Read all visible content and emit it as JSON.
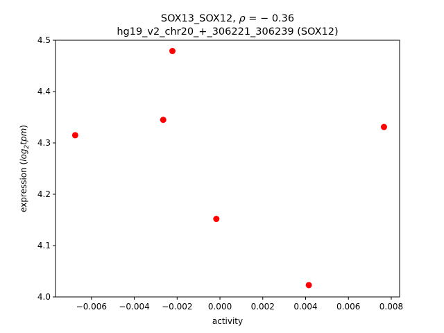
{
  "chart_data": {
    "type": "scatter",
    "title_line1": "SOX13_SOX12, ",
    "title_rho_symbol": "ρ",
    "title_rho_value": " = − 0.36",
    "title_line2": "hg19_v2_chr20_+_306221_306239 (SOX12)",
    "xlabel": "activity",
    "ylabel_prefix": "expression (",
    "ylabel_log": "log",
    "ylabel_sub": "2",
    "ylabel_tpm": "tpm",
    "ylabel_suffix": ")",
    "xlim": [
      -0.00768,
      0.00839
    ],
    "ylim": [
      4.0,
      4.5
    ],
    "xticks": [
      -0.006,
      -0.004,
      -0.002,
      0.0,
      0.002,
      0.004,
      0.006,
      0.008
    ],
    "xtick_labels": [
      "−0.006",
      "−0.004",
      "−0.002",
      "0.000",
      "0.002",
      "0.004",
      "0.006",
      "0.008"
    ],
    "yticks": [
      4.0,
      4.1,
      4.2,
      4.3,
      4.4,
      4.5
    ],
    "ytick_labels": [
      "4.0",
      "4.1",
      "4.2",
      "4.3",
      "4.4",
      "4.5"
    ],
    "grid": false,
    "marker_color": "#ff0000",
    "points": [
      {
        "x": -0.00676,
        "y": 4.315
      },
      {
        "x": -0.00222,
        "y": 4.479
      },
      {
        "x": -0.00265,
        "y": 4.345
      },
      {
        "x": -0.00017,
        "y": 4.152
      },
      {
        "x": 0.00415,
        "y": 4.023
      },
      {
        "x": 0.00766,
        "y": 4.331
      }
    ]
  }
}
